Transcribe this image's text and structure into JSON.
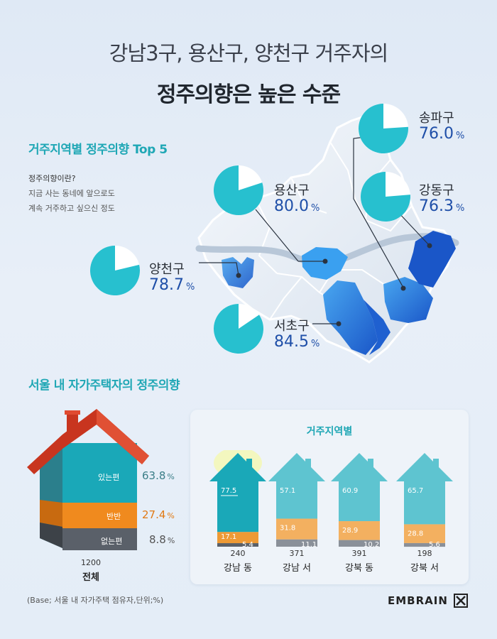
{
  "header": {
    "title_line1": "강남3구, 용산구, 양천구 거주자의",
    "title_line2": "정주의향은 높은 수준"
  },
  "top5": {
    "section_title": "거주지역별 정주의향 Top 5",
    "definition_q": "정주의향이란?",
    "definition_1": "지금 사는 동네에 앞으로도",
    "definition_2": "계속 거주하고 싶으신 정도",
    "unit": "%"
  },
  "chart_data": [
    {
      "type": "pie",
      "title": "거주지역별 정주의향 Top 5",
      "unit": "%",
      "series": [
        {
          "name": "송파구",
          "value": 76.0,
          "display": "76.0"
        },
        {
          "name": "용산구",
          "value": 80.0,
          "display": "80.0"
        },
        {
          "name": "강동구",
          "value": 76.3,
          "display": "76.3"
        },
        {
          "name": "양천구",
          "value": 78.7,
          "display": "78.7"
        },
        {
          "name": "서초구",
          "value": 84.5,
          "display": "84.5"
        }
      ],
      "colors": {
        "filled": "#27c0cf",
        "empty": "#ffffff",
        "value_text": "#1f4fa8"
      }
    },
    {
      "type": "bar",
      "title": "서울 내 자가주택자의 정주의향",
      "subtitle": "거주지역별",
      "categories": [
        "강남 동",
        "강남 서",
        "강북 동",
        "강북 서"
      ],
      "sample_sizes": [
        "240",
        "371",
        "391",
        "198"
      ],
      "series": [
        {
          "name": "있는편",
          "values": [
            77.5,
            57.1,
            60.9,
            65.7
          ],
          "display": [
            "77.5",
            "57.1",
            "60.9",
            "65.7"
          ]
        },
        {
          "name": "반반",
          "values": [
            17.1,
            31.8,
            28.9,
            28.8
          ],
          "display": [
            "17.1",
            "31.8",
            "28.9",
            "28.8"
          ]
        },
        {
          "name": "없는편",
          "values": [
            5.4,
            11.1,
            10.2,
            5.6
          ],
          "display": [
            "5.4",
            "11.1",
            "10.2",
            "5.6"
          ]
        }
      ],
      "highlight": "강남 동",
      "stacked": true
    }
  ],
  "overall": {
    "section_title": "서울 내 자가주택자의 정주의향",
    "n": "1200",
    "label": "전체",
    "rows": [
      {
        "name": "있는편",
        "value": "63.8",
        "color": "#1aa8b8"
      },
      {
        "name": "반반",
        "value": "27.4",
        "color": "#f08a1e"
      },
      {
        "name": "없는편",
        "value": "8.8",
        "color": "#555555"
      }
    ],
    "unit": "%"
  },
  "card": {
    "title": "거주지역별"
  },
  "colors": {
    "accent": "#1fa7b5",
    "positive": "#1aa8b8",
    "neutral": "#ee9a35",
    "negative": "#5a6069",
    "roof": "#c8351f",
    "map_highlight": "#1f6fd6"
  },
  "footer": {
    "base_note": "(Base; 서울 내 자가주택 점유자,단위;%)",
    "logo": "EMBRAIN"
  }
}
